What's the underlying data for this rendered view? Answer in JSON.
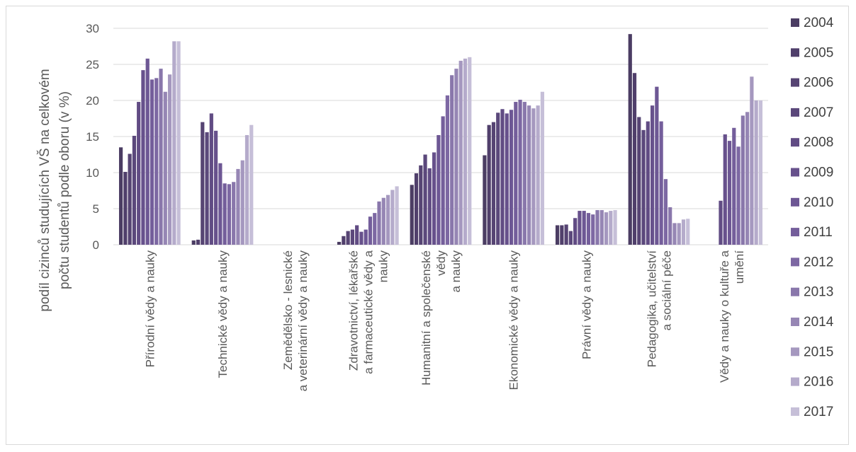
{
  "chart_data": {
    "type": "bar",
    "ylabel": "podíl cizinců studujících VŠ na celkovém počtu studentů podle oboru (v %)",
    "ylabel_lines": [
      "podíl cizinců studujících VŠ na celkovém",
      "počtu studentů podle oboru (v %)"
    ],
    "ylim": [
      0,
      30
    ],
    "yticks": [
      "0",
      "5",
      "10",
      "15",
      "20",
      "25",
      "30"
    ],
    "grid": true,
    "legend_position": "right",
    "categories": [
      "Přírodní vědy a nauky",
      "Technické vědy a nauky",
      "Zemědělsko - lesnické a veterinární vědy a nauky",
      "Zdravotnictví, lékařské a farmaceutické vědy a nauky",
      "Humanitní a společenské vědy a nauky",
      "Ekonomické vědy a nauky",
      "Právní vědy a nauky",
      "Pedagogika, učitelství a sociální péče",
      "Vědy a nauky o kultuře a umění"
    ],
    "category_label_lines": [
      [
        "Přírodní vědy a nauky"
      ],
      [
        "Technické vědy a nauky"
      ],
      [
        "Zemědělsko - lesnické",
        "a veterinární vědy a nauky"
      ],
      [
        "Zdravotnictví, lékařské",
        "a farmaceutické vědy a",
        "nauky"
      ],
      [
        "Humanitní a společenské",
        "vědy",
        "a nauky"
      ],
      [
        "Ekonomické vědy a nauky"
      ],
      [
        "Právní vědy a nauky"
      ],
      [
        "Pedagogika, učitelství",
        "a sociální péče"
      ],
      [
        "Vědy a nauky o kultuře a",
        "umění"
      ]
    ],
    "series": [
      {
        "name": "2004",
        "color": "#4b3d63",
        "values": [
          13.5,
          0.6,
          0,
          0.4,
          8.3,
          12.4,
          2.7,
          29.2,
          0
        ]
      },
      {
        "name": "2005",
        "color": "#503f6b",
        "values": [
          10.1,
          0.7,
          0,
          1.2,
          9.9,
          16.6,
          2.7,
          23.8,
          0
        ]
      },
      {
        "name": "2006",
        "color": "#564473",
        "values": [
          12.6,
          17.0,
          0,
          1.9,
          11.0,
          17.0,
          2.8,
          17.7,
          0
        ]
      },
      {
        "name": "2007",
        "color": "#5b487b",
        "values": [
          15.1,
          15.6,
          0,
          2.1,
          12.5,
          18.3,
          1.9,
          15.9,
          0
        ]
      },
      {
        "name": "2008",
        "color": "#614c84",
        "values": [
          19.8,
          18.2,
          0,
          2.7,
          10.6,
          18.8,
          3.7,
          17.1,
          6.1
        ]
      },
      {
        "name": "2009",
        "color": "#67518c",
        "values": [
          24.2,
          15.8,
          0,
          1.8,
          12.8,
          18.2,
          4.7,
          19.3,
          15.3
        ]
      },
      {
        "name": "2010",
        "color": "#6d5794",
        "values": [
          25.8,
          11.3,
          0,
          2.1,
          15.2,
          18.7,
          4.7,
          21.9,
          14.4
        ]
      },
      {
        "name": "2011",
        "color": "#745e9b",
        "values": [
          22.9,
          8.5,
          0,
          3.9,
          17.8,
          19.8,
          4.4,
          17.1,
          16.2
        ]
      },
      {
        "name": "2012",
        "color": "#7d68a3",
        "values": [
          23.1,
          8.4,
          0,
          4.4,
          20.7,
          20.1,
          4.2,
          9.1,
          13.6
        ]
      },
      {
        "name": "2013",
        "color": "#8977ab",
        "values": [
          24.4,
          8.7,
          0,
          6.0,
          23.5,
          19.8,
          4.8,
          5.2,
          17.9
        ]
      },
      {
        "name": "2014",
        "color": "#9686b4",
        "values": [
          21.2,
          10.5,
          0,
          6.5,
          24.4,
          19.3,
          4.8,
          3.0,
          18.4
        ]
      },
      {
        "name": "2015",
        "color": "#a598bf",
        "values": [
          23.6,
          11.7,
          0,
          6.9,
          25.5,
          18.9,
          4.5,
          3.0,
          23.3
        ]
      },
      {
        "name": "2016",
        "color": "#b5abcb",
        "values": [
          28.2,
          15.2,
          0,
          7.6,
          25.8,
          19.3,
          4.7,
          3.5,
          20.0
        ]
      },
      {
        "name": "2017",
        "color": "#c6bfd8",
        "values": [
          28.2,
          16.6,
          0,
          8.1,
          26.0,
          21.2,
          4.8,
          3.6,
          20.0
        ]
      }
    ]
  }
}
